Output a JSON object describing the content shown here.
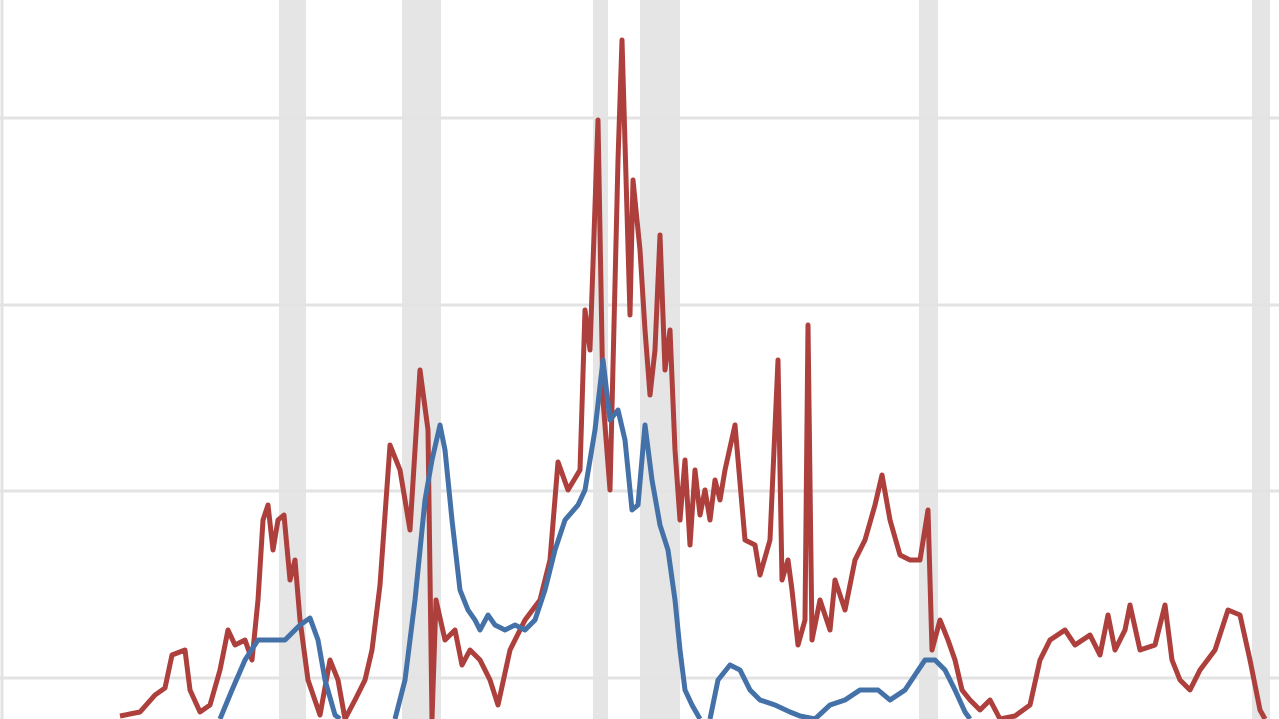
{
  "chart_data": {
    "type": "line",
    "xlim": [
      0,
      1279
    ],
    "ylim": [
      0,
      719
    ],
    "yticks": [
      41,
      228,
      414,
      601
    ],
    "grid": true,
    "shaded": [
      [
        279,
        306
      ],
      [
        402,
        441
      ],
      [
        593,
        608
      ],
      [
        640,
        680
      ],
      [
        919,
        938
      ],
      [
        1252,
        1270
      ]
    ],
    "series": [
      {
        "color": "#ad3f3c",
        "x": [
          120,
          140,
          155,
          165,
          172,
          185,
          190,
          200,
          210,
          220,
          228,
          235,
          245,
          252,
          258,
          263,
          268,
          273,
          278,
          284,
          290,
          295,
          300,
          308,
          320,
          330,
          338,
          345,
          355,
          365,
          372,
          380,
          390,
          400,
          410,
          420,
          428,
          432,
          436,
          445,
          455,
          462,
          470,
          480,
          490,
          498,
          510,
          525,
          540,
          550,
          558,
          568,
          580,
          585,
          590,
          598,
          603,
          610,
          618,
          622,
          630,
          633,
          640,
          645,
          650,
          655,
          660,
          665,
          670,
          675,
          680,
          685,
          690,
          695,
          700,
          705,
          710,
          715,
          720,
          725,
          735,
          745,
          755,
          760,
          770,
          778,
          782,
          788,
          792,
          798,
          805,
          808,
          812,
          820,
          830,
          835,
          845,
          855,
          865,
          875,
          882,
          890,
          900,
          910,
          920,
          928,
          932,
          940,
          948,
          955,
          962,
          970,
          980,
          990,
          1000,
          1015,
          1030,
          1040,
          1050,
          1065,
          1075,
          1090,
          1100,
          1108,
          1115,
          1125,
          1130,
          1140,
          1155,
          1165,
          1172,
          1180,
          1190,
          1200,
          1215,
          1228,
          1240,
          1250,
          1260,
          1265
        ],
        "values": [
          3,
          7,
          24,
          31,
          64,
          69,
          29,
          7,
          14,
          49,
          89,
          74,
          79,
          59,
          119,
          199,
          214,
          169,
          199,
          204,
          139,
          159,
          99,
          39,
          4,
          59,
          39,
          0,
          19,
          39,
          69,
          134,
          274,
          249,
          189,
          349,
          289,
          0,
          119,
          79,
          89,
          54,
          69,
          59,
          39,
          14,
          69,
          99,
          119,
          159,
          257,
          229,
          249,
          409,
          369,
          599,
          319,
          229,
          559,
          679,
          404,
          539,
          469,
          389,
          324,
          369,
          484,
          349,
          389,
          269,
          199,
          259,
          174,
          249,
          204,
          229,
          199,
          239,
          219,
          249,
          294,
          179,
          174,
          144,
          179,
          359,
          139,
          159,
          129,
          74,
          99,
          394,
          79,
          119,
          89,
          139,
          109,
          159,
          179,
          214,
          244,
          199,
          164,
          159,
          159,
          209,
          69,
          99,
          79,
          59,
          29,
          19,
          9,
          19,
          0,
          3,
          14,
          59,
          79,
          89,
          74,
          84,
          64,
          104,
          69,
          89,
          114,
          69,
          74,
          114,
          59,
          39,
          29,
          49,
          69,
          109,
          104,
          59,
          9,
          0
        ]
      },
      {
        "color": "#4472a8",
        "x": [
          220,
          232,
          245,
          258,
          270,
          285,
          300,
          310,
          318,
          325,
          335,
          340,
          368,
          395,
          405,
          415,
          425,
          432,
          440,
          445,
          452,
          460,
          468,
          475,
          480,
          488,
          495,
          505,
          515,
          525,
          535,
          545,
          555,
          565,
          578,
          585,
          595,
          603,
          610,
          618,
          625,
          632,
          638,
          645,
          652,
          660,
          668,
          675,
          680,
          685,
          692,
          700,
          705,
          710,
          718,
          730,
          740,
          750,
          760,
          775,
          790,
          800,
          815,
          830,
          845,
          860,
          878,
          890,
          905,
          915,
          925,
          935,
          945,
          955,
          965,
          970
        ],
        "values": [
          0,
          29,
          59,
          79,
          79,
          79,
          94,
          101,
          79,
          39,
          4,
          0,
          null,
          0,
          39,
          119,
          219,
          259,
          294,
          269,
          199,
          129,
          109,
          99,
          89,
          104,
          94,
          89,
          94,
          89,
          99,
          129,
          169,
          199,
          214,
          229,
          289,
          359,
          299,
          309,
          279,
          209,
          214,
          294,
          239,
          194,
          169,
          119,
          69,
          29,
          14,
          0,
          null,
          0,
          39,
          54,
          49,
          29,
          19,
          14,
          7,
          3,
          0,
          14,
          19,
          29,
          29,
          19,
          29,
          44,
          59,
          59,
          49,
          29,
          7,
          0
        ]
      }
    ]
  }
}
